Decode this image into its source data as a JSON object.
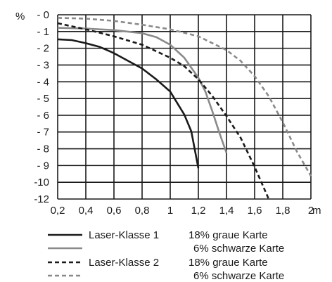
{
  "chart_data": {
    "type": "line",
    "y_unit_label": "%",
    "x_unit_label": "m",
    "xlim": [
      0.2,
      2.0
    ],
    "ylim": [
      -12,
      0
    ],
    "grid": true,
    "x_ticks": [
      "0,2",
      "0,4",
      "0,6",
      "0,8",
      "1",
      "1,2",
      "1,4",
      "1,6",
      "1,8",
      "2"
    ],
    "y_ticks": [
      "- 0",
      "- 1",
      "- 2",
      "- 3",
      "- 4",
      "- 5",
      "- 6",
      "- 7",
      "- 8",
      "- 9",
      "-10",
      "-12"
    ],
    "series": [
      {
        "style": "solid",
        "color": "#1a1a1a",
        "points": [
          [
            0.2,
            -1.6
          ],
          [
            0.3,
            -1.65
          ],
          [
            0.4,
            -1.85
          ],
          [
            0.5,
            -2.1
          ],
          [
            0.6,
            -2.5
          ],
          [
            0.7,
            -3.0
          ],
          [
            0.8,
            -3.5
          ],
          [
            0.9,
            -4.2
          ],
          [
            1.0,
            -5.0
          ],
          [
            1.1,
            -6.5
          ],
          [
            1.15,
            -7.6
          ],
          [
            1.2,
            -10.0
          ]
        ]
      },
      {
        "style": "solid",
        "color": "#8a8a8a",
        "points": [
          [
            0.2,
            -0.85
          ],
          [
            0.4,
            -0.9
          ],
          [
            0.6,
            -1.0
          ],
          [
            0.8,
            -1.2
          ],
          [
            0.9,
            -1.45
          ],
          [
            1.0,
            -1.95
          ],
          [
            1.1,
            -2.8
          ],
          [
            1.2,
            -4.1
          ],
          [
            1.25,
            -5.0
          ],
          [
            1.3,
            -6.3
          ],
          [
            1.35,
            -7.7
          ],
          [
            1.4,
            -9.0
          ]
        ]
      },
      {
        "style": "dashed",
        "color": "#1a1a1a",
        "points": [
          [
            0.2,
            -0.55
          ],
          [
            0.3,
            -0.75
          ],
          [
            0.4,
            -0.95
          ],
          [
            0.6,
            -1.4
          ],
          [
            0.8,
            -1.95
          ],
          [
            1.0,
            -2.8
          ],
          [
            1.1,
            -3.35
          ],
          [
            1.2,
            -4.2
          ],
          [
            1.3,
            -5.3
          ],
          [
            1.4,
            -6.6
          ],
          [
            1.5,
            -8.0
          ],
          [
            1.6,
            -9.9
          ],
          [
            1.7,
            -12.0
          ]
        ]
      },
      {
        "style": "dashed",
        "color": "#8a8a8a",
        "points": [
          [
            0.2,
            -0.2
          ],
          [
            0.4,
            -0.25
          ],
          [
            0.6,
            -0.4
          ],
          [
            0.8,
            -0.65
          ],
          [
            1.0,
            -0.95
          ],
          [
            1.2,
            -1.4
          ],
          [
            1.4,
            -2.3
          ],
          [
            1.5,
            -3.0
          ],
          [
            1.6,
            -4.0
          ],
          [
            1.7,
            -5.3
          ],
          [
            1.8,
            -7.0
          ],
          [
            1.9,
            -8.9
          ],
          [
            2.0,
            -10.5
          ]
        ]
      }
    ],
    "legend": [
      {
        "label": "Laser-Klasse 1",
        "detail": "18% graue Karte"
      },
      {
        "label": "",
        "detail": "6% schwarze Karte"
      },
      {
        "label": "Laser-Klasse 2",
        "detail": "18% graue Karte"
      },
      {
        "label": "",
        "detail": "6% schwarze Karte"
      }
    ]
  }
}
